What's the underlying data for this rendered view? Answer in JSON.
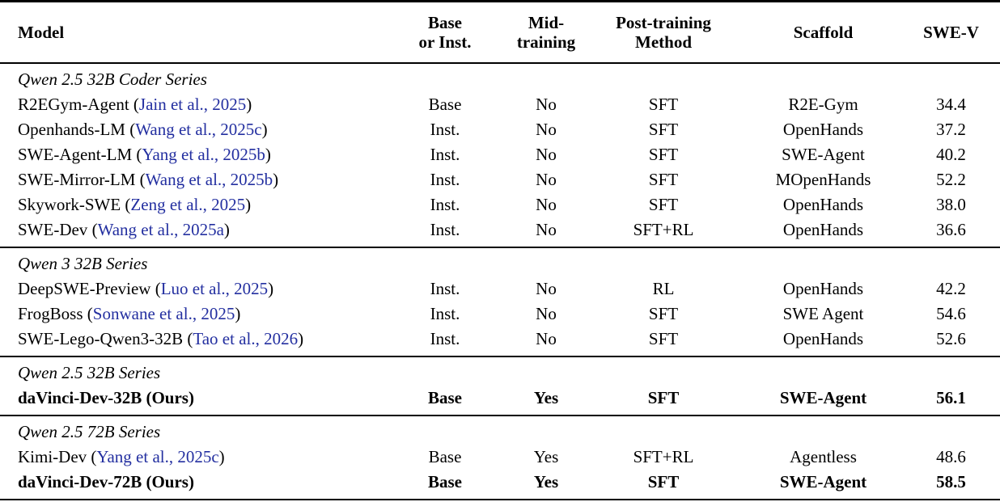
{
  "table": {
    "columns": [
      {
        "line1": "Model",
        "line2": ""
      },
      {
        "line1": "Base",
        "line2": "or Inst."
      },
      {
        "line1": "Mid-",
        "line2": "training"
      },
      {
        "line1": "Post-training",
        "line2": "Method"
      },
      {
        "line1": "Scaffold",
        "line2": ""
      },
      {
        "line1": "SWE-V",
        "line2": ""
      }
    ],
    "colors": {
      "citation_link": "#232fa0",
      "text": "#000000",
      "rule": "#000000"
    },
    "sections": [
      {
        "series_label": "Qwen 2.5 32B Coder Series",
        "rows": [
          {
            "model": "R2EGym-Agent",
            "citation": "Jain et al., 2025",
            "base_or_inst": "Base",
            "mid_training": "No",
            "post_training": "SFT",
            "scaffold": "R2E-Gym",
            "swe_v": "34.4",
            "emphasis": false
          },
          {
            "model": "Openhands-LM",
            "citation": "Wang et al., 2025c",
            "base_or_inst": "Inst.",
            "mid_training": "No",
            "post_training": "SFT",
            "scaffold": "OpenHands",
            "swe_v": "37.2",
            "emphasis": false
          },
          {
            "model": "SWE-Agent-LM",
            "citation": "Yang et al., 2025b",
            "base_or_inst": "Inst.",
            "mid_training": "No",
            "post_training": "SFT",
            "scaffold": "SWE-Agent",
            "swe_v": "40.2",
            "emphasis": false
          },
          {
            "model": "SWE-Mirror-LM",
            "citation": "Wang et al., 2025b",
            "base_or_inst": "Inst.",
            "mid_training": "No",
            "post_training": "SFT",
            "scaffold": "MOpenHands",
            "swe_v": "52.2",
            "emphasis": false
          },
          {
            "model": "Skywork-SWE",
            "citation": "Zeng et al., 2025",
            "base_or_inst": "Inst.",
            "mid_training": "No",
            "post_training": "SFT",
            "scaffold": "OpenHands",
            "swe_v": "38.0",
            "emphasis": false
          },
          {
            "model": "SWE-Dev",
            "citation": "Wang et al., 2025a",
            "base_or_inst": "Inst.",
            "mid_training": "No",
            "post_training": "SFT+RL",
            "scaffold": "OpenHands",
            "swe_v": "36.6",
            "emphasis": false
          }
        ]
      },
      {
        "series_label": "Qwen 3 32B Series",
        "rows": [
          {
            "model": "DeepSWE-Preview",
            "citation": "Luo et al., 2025",
            "base_or_inst": "Inst.",
            "mid_training": "No",
            "post_training": "RL",
            "scaffold": "OpenHands",
            "swe_v": "42.2",
            "emphasis": false
          },
          {
            "model": "FrogBoss",
            "citation": "Sonwane et al., 2025",
            "base_or_inst": "Inst.",
            "mid_training": "No",
            "post_training": "SFT",
            "scaffold": "SWE Agent",
            "swe_v": "54.6",
            "emphasis": false
          },
          {
            "model": "SWE-Lego-Qwen3-32B",
            "citation": "Tao et al., 2026",
            "base_or_inst": "Inst.",
            "mid_training": "No",
            "post_training": "SFT",
            "scaffold": "OpenHands",
            "swe_v": "52.6",
            "emphasis": false
          }
        ]
      },
      {
        "series_label": "Qwen 2.5 32B Series",
        "rows": [
          {
            "model": "daVinci-Dev-32B (Ours)",
            "citation": "",
            "base_or_inst": "Base",
            "mid_training": "Yes",
            "post_training": "SFT",
            "scaffold": "SWE-Agent",
            "swe_v": "56.1",
            "emphasis": true
          }
        ]
      },
      {
        "series_label": "Qwen 2.5 72B Series",
        "rows": [
          {
            "model": "Kimi-Dev",
            "citation": "Yang et al., 2025c",
            "base_or_inst": "Base",
            "mid_training": "Yes",
            "post_training": "SFT+RL",
            "scaffold": "Agentless",
            "swe_v": "48.6",
            "emphasis": false
          },
          {
            "model": "daVinci-Dev-72B (Ours)",
            "citation": "",
            "base_or_inst": "Base",
            "mid_training": "Yes",
            "post_training": "SFT",
            "scaffold": "SWE-Agent",
            "swe_v": "58.5",
            "emphasis": true
          }
        ]
      }
    ]
  }
}
